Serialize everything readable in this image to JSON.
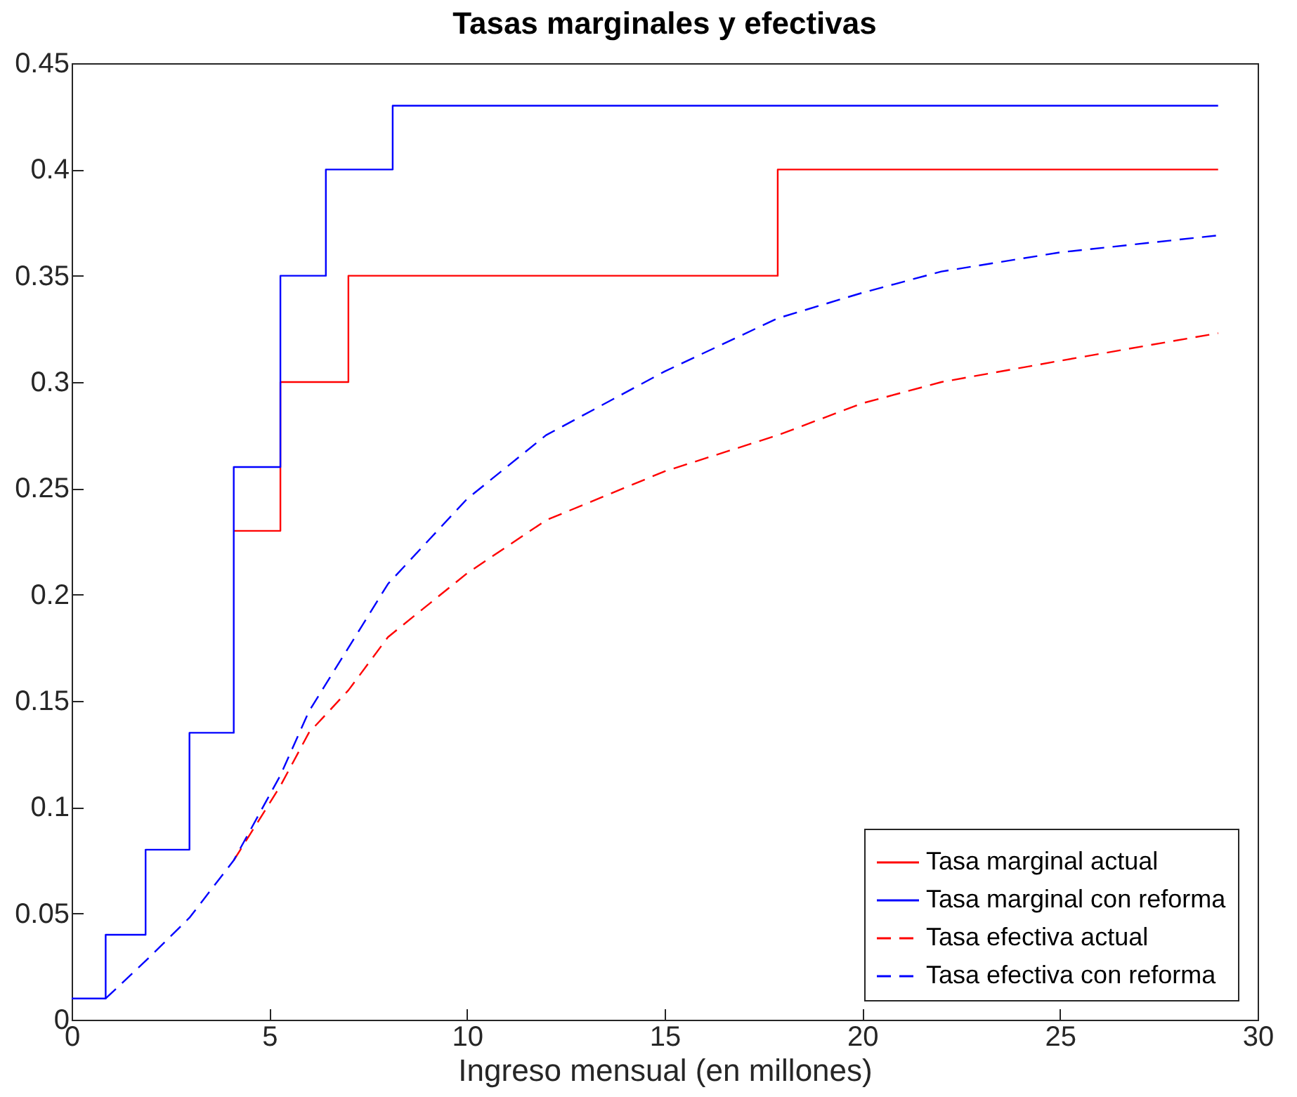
{
  "chart_data": {
    "type": "step",
    "title": "Tasas marginales y efectivas",
    "xlabel": "Ingreso mensual (en millones)",
    "xlim": [
      0,
      30
    ],
    "xticks": [
      0,
      5,
      10,
      15,
      20,
      25,
      30
    ],
    "ylim": [
      0,
      0.45
    ],
    "yticks": [
      0,
      0.05,
      0.1,
      0.15,
      0.2,
      0.25,
      0.3,
      0.35,
      0.4,
      0.45
    ],
    "grid": false,
    "legend": "bottom right",
    "series": [
      {
        "name": "Tasa marginal actual",
        "color": "#ff0000",
        "line_style": "solid",
        "x": [
          4.1,
          5.28,
          7.0,
          17.86,
          29
        ],
        "values": [
          0.23,
          0.3,
          0.35,
          0.4,
          0.4
        ]
      },
      {
        "name": "Tasa marginal con reforma",
        "color": "#0000ff",
        "line_style": "solid",
        "x": [
          0,
          0.86,
          1.87,
          2.98,
          4.1,
          5.28,
          6.43,
          8.12,
          29
        ],
        "values": [
          0.01,
          0.04,
          0.08,
          0.135,
          0.26,
          0.35,
          0.4,
          0.43,
          0.43
        ]
      },
      {
        "name": "Tasa efectiva actual",
        "type": "line",
        "color": "#ff0000",
        "line_style": "dashed",
        "x": [
          4.1,
          5.28,
          6,
          7,
          8,
          10,
          12,
          15,
          17.86,
          20,
          22,
          25,
          29
        ],
        "values": [
          0.075,
          0.11,
          0.135,
          0.155,
          0.18,
          0.21,
          0.235,
          0.258,
          0.275,
          0.29,
          0.3,
          0.31,
          0.323
        ]
      },
      {
        "name": "Tasa efectiva con reforma",
        "type": "line",
        "color": "#0000ff",
        "line_style": "dashed",
        "x": [
          0.86,
          2,
          2.98,
          4.1,
          5.28,
          6,
          7,
          8,
          10,
          12,
          15,
          17.86,
          20,
          22,
          25,
          29
        ],
        "values": [
          0.01,
          0.03,
          0.048,
          0.075,
          0.115,
          0.145,
          0.175,
          0.205,
          0.245,
          0.275,
          0.305,
          0.33,
          0.342,
          0.352,
          0.361,
          0.369
        ]
      }
    ]
  }
}
